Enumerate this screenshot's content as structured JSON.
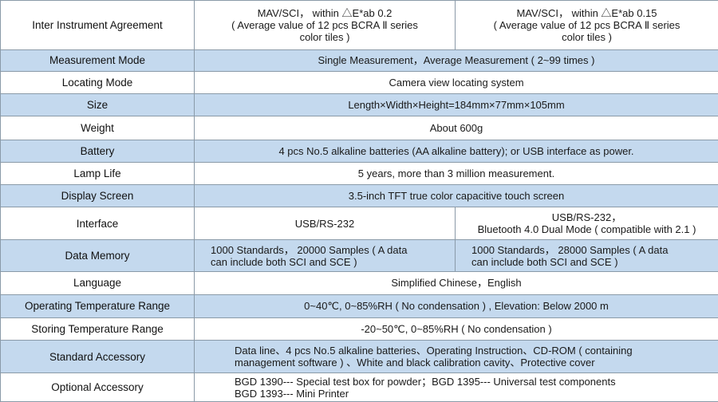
{
  "rows": [
    {
      "label": "Inter Instrument Agreement",
      "col1": "MAV/SCI， within △E*ab 0.2\n( Average value of 12 pcs BCRA Ⅱ series\ncolor tiles )",
      "col2": "MAV/SCI， within △E*ab 0.15\n( Average value of 12 pcs BCRA Ⅱ series\ncolor tiles )"
    },
    {
      "label": "Measurement Mode",
      "value": "Single Measurement，Average Measurement ( 2~99 times )"
    },
    {
      "label": "Locating Mode",
      "value": "Camera view locating system"
    },
    {
      "label": "Size",
      "value": "Length×Width×Height=184mm×77mm×105mm"
    },
    {
      "label": "Weight",
      "value": "About 600g"
    },
    {
      "label": "Battery",
      "value": "4 pcs No.5 alkaline batteries (AA alkaline battery); or USB interface as power."
    },
    {
      "label": "Lamp Life",
      "value": "5 years, more than 3 million measurement."
    },
    {
      "label": "Display Screen",
      "value": "3.5-inch TFT true color capacitive touch screen"
    },
    {
      "label": "Interface",
      "col1": "USB/RS-232",
      "col2": "USB/RS-232，\nBluetooth 4.0 Dual Mode ( compatible with 2.1 )"
    },
    {
      "label": "Data Memory",
      "col1": "1000 Standards， 20000 Samples ( A data\ncan include both SCI and SCE )",
      "col2": "1000 Standards， 28000 Samples ( A data\ncan include both SCI and SCE )"
    },
    {
      "label": "Language",
      "value": "Simplified Chinese，English"
    },
    {
      "label": "Operating Temperature Range",
      "value": "0~40℃, 0~85%RH ( No condensation ) , Elevation: Below 2000 m"
    },
    {
      "label": "Storing Temperature Range",
      "value": "-20~50℃, 0~85%RH ( No condensation )"
    },
    {
      "label": "Standard Accessory",
      "value": "Data line、4 pcs No.5 alkaline batteries、Operating Instruction、CD-ROM ( containing\nmanagement software ) 、White and black calibration cavity、Protective cover"
    },
    {
      "label": "Optional Accessory",
      "value": "BGD 1390--- Special test box for powder；BGD 1395--- Universal  test components\nBGD 1393--- Mini Printer"
    }
  ]
}
